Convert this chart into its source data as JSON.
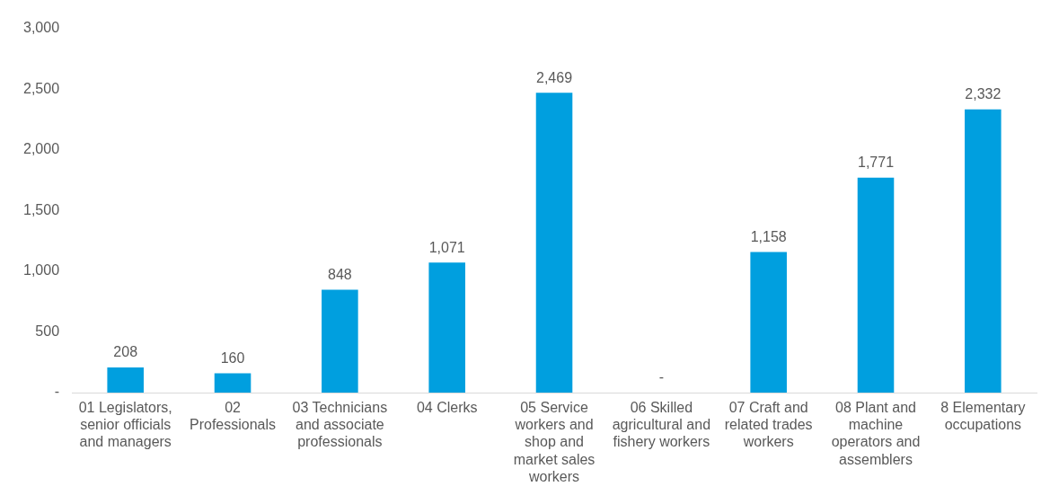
{
  "chart_data": {
    "type": "bar",
    "categories": [
      "01 Legislators, senior officials and managers",
      "02 Professionals",
      "03 Technicians and associate professionals",
      "04 Clerks",
      "05 Service workers and shop and market sales workers",
      "06 Skilled agricultural and fishery workers",
      "07 Craft and related trades workers",
      "08 Plant and machine operators and assemblers",
      "8 Elementary occupations"
    ],
    "values": [
      208,
      160,
      848,
      1071,
      2469,
      0,
      1158,
      1771,
      2332
    ],
    "value_labels": [
      "208",
      "160",
      "848",
      "1,071",
      "2,469",
      "-",
      "1,158",
      "1,771",
      "2,332"
    ],
    "color": "#009fdf",
    "ylim": [
      0,
      3000
    ],
    "yticks": [
      {
        "value": 0,
        "label": "-"
      },
      500,
      {
        "value": 1000,
        "label": "1,000"
      },
      {
        "value": 1500,
        "label": "1,500"
      },
      {
        "value": 2000,
        "label": "2,000"
      },
      {
        "value": 2500,
        "label": "2,500"
      },
      {
        "value": 3000,
        "label": "3,000"
      }
    ],
    "grid": false,
    "legend": false
  }
}
